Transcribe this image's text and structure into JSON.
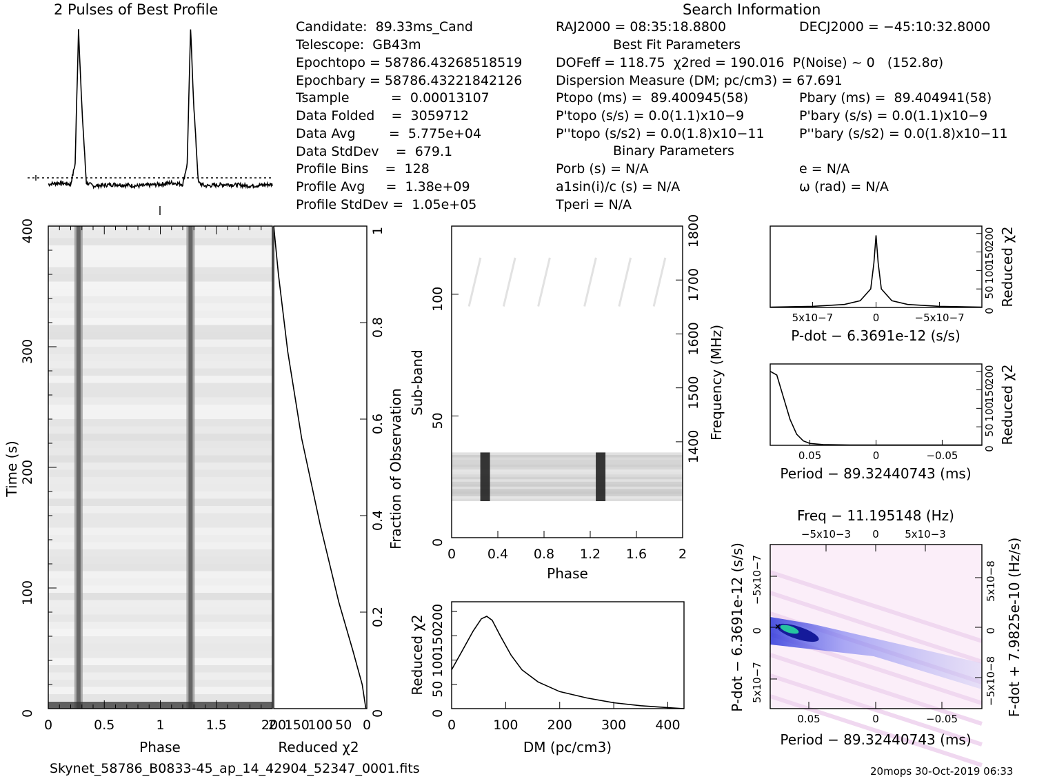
{
  "header": {
    "profile_title": "2 Pulses of Best Profile",
    "search_title": "Search Information",
    "best_fit_title": "Best Fit Parameters",
    "binary_title": "Binary Parameters",
    "candidate": "Candidate:  89.33ms_Cand",
    "telescope": "Telescope:  GB43m",
    "epoch_topo": "Epochtopo = 58786.43268518519",
    "epoch_bary": "Epochbary = 58786.43221842126",
    "tsample": "Tsample          =  0.00013107",
    "data_folded": "Data Folded    =  3059712",
    "data_avg": "Data Avg        =  5.775e+04",
    "data_stddev": "Data StdDev    =  679.1",
    "profile_bins": "Profile Bins    =  128",
    "profile_avg": "Profile Avg     =  1.38e+09",
    "profile_stddev": "Profile StdDev =  1.05e+05",
    "ra": "RAJ2000 = 08:35:18.8800",
    "dec": "DECJ2000 = −45:10:32.8000",
    "dof": "DOFeff = 118.75  χ2red = 190.016  P(Noise) ~ 0   (152.8σ)",
    "dm_line": "Dispersion Measure (DM; pc/cm3) = 67.691",
    "p_topo": "Ptopo (ms) =  89.400945(58)",
    "p_bary": "Pbary (ms) =  89.404941(58)",
    "pd_topo": "P'topo (s/s) = 0.0(1.1)x10−9",
    "pd_bary": "P'bary (s/s) = 0.0(1.1)x10−9",
    "pdd_topo": "P''topo (s/s2) = 0.0(1.8)x10−11",
    "pdd_bary": "P''bary (s/s2) = 0.0(1.8)x10−11",
    "porb": "Porb (s) = N/A",
    "asini": "a1sin(i)/c (s) = N/A",
    "tperi": "Tperi = N/A",
    "ecc": "e = N/A",
    "omega": "ω (rad) = N/A",
    "filename": "Skynet_58786_B0833-45_ap_14_42904_52347_0001.fits",
    "footer_right": "20mops 30-Oct-2019 06:33"
  },
  "chart_data": [
    {
      "type": "line",
      "title": "2 Pulses of Best Profile",
      "x": [
        0.0,
        0.1,
        0.2,
        0.24,
        0.27,
        0.3,
        0.34,
        0.4,
        0.6,
        0.8,
        1.0,
        1.1,
        1.2,
        1.24,
        1.27,
        1.3,
        1.34,
        1.4,
        1.6,
        1.8,
        2.0
      ],
      "y": [
        0.02,
        0.03,
        0.02,
        0.15,
        1.0,
        0.5,
        0.03,
        0.01,
        0.02,
        0.01,
        0.02,
        0.03,
        0.02,
        0.15,
        1.0,
        0.5,
        0.03,
        0.01,
        0.02,
        0.01,
        0.02
      ]
    },
    {
      "type": "heatmap",
      "xlabel": "Phase",
      "ylabel": "Time (s)",
      "x_ticks": [
        "0",
        "0.5",
        "1",
        "1.5",
        "2"
      ],
      "y_ticks": [
        "0",
        "100",
        "200",
        "300",
        "400"
      ],
      "xlim": [
        0,
        2
      ],
      "ylim": [
        0,
        400
      ],
      "pulse_phases": [
        0.27,
        1.27
      ]
    },
    {
      "type": "line",
      "xlabel": "Reduced χ2",
      "ylabel": "Fraction of Observation",
      "x_ticks": [
        "200",
        "150",
        "100",
        "50",
        "0"
      ],
      "y_ticks": [
        "0",
        "0.2",
        "0.4",
        "0.6",
        "0.8",
        "1"
      ],
      "xlim": [
        200,
        0
      ],
      "ylim": [
        0,
        1
      ],
      "x": [
        2,
        10,
        30,
        60,
        100,
        140,
        170,
        190,
        200
      ],
      "y": [
        0.0,
        0.05,
        0.12,
        0.22,
        0.38,
        0.56,
        0.74,
        0.9,
        1.0
      ]
    },
    {
      "type": "heatmap",
      "xlabel": "Phase",
      "ylabel": "Sub-band",
      "y2label": "Frequency (MHz)",
      "x_ticks": [
        "0",
        "0.4",
        "0.8",
        "1.2",
        "1.6",
        "2"
      ],
      "y_ticks": [
        "0",
        "50",
        "100"
      ],
      "y2_ticks": [
        "1400",
        "1500",
        "1600",
        "1700",
        "1800"
      ],
      "xlim": [
        0,
        2
      ],
      "ylim": [
        0,
        128
      ],
      "pulse_phases": [
        0.29,
        1.29
      ],
      "band_range": [
        15,
        35
      ]
    },
    {
      "type": "line",
      "xlabel": "DM (pc/cm3)",
      "ylabel": "Reduced χ2",
      "x_ticks": [
        "0",
        "100",
        "200",
        "300",
        "400"
      ],
      "y_ticks": [
        "0",
        "50",
        "100",
        "150",
        "200"
      ],
      "xlim": [
        0,
        430
      ],
      "ylim": [
        0,
        220
      ],
      "x": [
        0,
        20,
        40,
        55,
        65,
        75,
        90,
        110,
        130,
        160,
        200,
        250,
        300,
        350,
        400,
        430
      ],
      "y": [
        80,
        120,
        160,
        185,
        190,
        182,
        150,
        110,
        80,
        55,
        35,
        22,
        12,
        6,
        2,
        0
      ]
    },
    {
      "type": "line",
      "xlabel": "P-dot − 6.3691e-12 (s/s)",
      "ylabel": "Reduced χ2",
      "x_ticks": [
        "5x10−7",
        "0",
        "−5x10−7"
      ],
      "y_ticks": [
        "0",
        "50",
        "100",
        "150",
        "200"
      ],
      "ylim": [
        0,
        220
      ],
      "x": [
        1.0,
        0.6,
        0.3,
        0.15,
        0.05,
        0.02,
        0.0,
        -0.02,
        -0.05,
        -0.15,
        -0.3,
        -0.6,
        -1.0
      ],
      "y": [
        1,
        3,
        8,
        18,
        50,
        120,
        195,
        120,
        50,
        18,
        8,
        3,
        1
      ]
    },
    {
      "type": "line",
      "xlabel": "Period − 89.32440743 (ms)",
      "ylabel": "Reduced χ2",
      "x_ticks": [
        "0.05",
        "0",
        "−0.05"
      ],
      "y_ticks": [
        "0",
        "50",
        "100",
        "150",
        "200"
      ],
      "ylim": [
        0,
        220
      ],
      "x": [
        0.08,
        0.075,
        0.07,
        0.065,
        0.06,
        0.055,
        0.05,
        0.04,
        0.02,
        0.0,
        -0.03,
        -0.08
      ],
      "y": [
        200,
        190,
        130,
        70,
        30,
        12,
        5,
        2,
        1,
        1,
        1,
        1
      ]
    },
    {
      "type": "heatmap",
      "title": "Freq − 11.195148 (Hz)",
      "xlabel": "Period − 89.32440743 (ms)",
      "ylabel": "P-dot − 6.3691e-12 (s/s)",
      "y2label": "F-dot + 7.9825e-10 (Hz/s)",
      "x_ticks": [
        "0.05",
        "0",
        "−0.05"
      ],
      "x2_ticks": [
        "−5x10−3",
        "0",
        "5x10−3"
      ],
      "y_ticks": [
        "5x10−7",
        "0",
        "−5x10−7"
      ],
      "y2_ticks": [
        "−5x10−8",
        "0",
        "5x10−8"
      ]
    }
  ]
}
